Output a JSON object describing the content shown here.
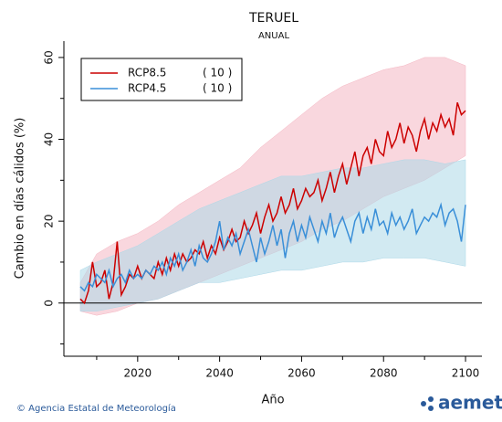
{
  "chart_data": {
    "type": "line",
    "title": "TERUEL",
    "subtitle": "ANUAL",
    "y_label": "Cambio en días cálidos (%)",
    "x_label": "Año",
    "footer": "© Agencia Estatal de Meteorología",
    "logo": "aemet",
    "xlim": [
      2002,
      2104
    ],
    "xticks": [
      2020,
      2040,
      2060,
      2080,
      2100
    ],
    "xminor": [
      2010,
      2030,
      2050,
      2070,
      2090
    ],
    "ylim": [
      -13,
      64
    ],
    "yticks": [
      0,
      20,
      40,
      60
    ],
    "yminor": [
      -10,
      10,
      30,
      50
    ],
    "zero_line": true,
    "legend": "upper-left",
    "x": [
      2006,
      2007,
      2008,
      2009,
      2010,
      2011,
      2012,
      2013,
      2014,
      2015,
      2016,
      2017,
      2018,
      2019,
      2020,
      2021,
      2022,
      2023,
      2024,
      2025,
      2026,
      2027,
      2028,
      2029,
      2030,
      2031,
      2032,
      2033,
      2034,
      2035,
      2036,
      2037,
      2038,
      2039,
      2040,
      2041,
      2042,
      2043,
      2044,
      2045,
      2046,
      2047,
      2048,
      2049,
      2050,
      2051,
      2052,
      2053,
      2054,
      2055,
      2056,
      2057,
      2058,
      2059,
      2060,
      2061,
      2062,
      2063,
      2064,
      2065,
      2066,
      2067,
      2068,
      2069,
      2070,
      2071,
      2072,
      2073,
      2074,
      2075,
      2076,
      2077,
      2078,
      2079,
      2080,
      2081,
      2082,
      2083,
      2084,
      2085,
      2086,
      2087,
      2088,
      2089,
      2090,
      2091,
      2092,
      2093,
      2094,
      2095,
      2096,
      2097,
      2098,
      2099,
      2100
    ],
    "series": [
      {
        "name": "RCP8.5",
        "note": "( 10 )",
        "color": "#cc0000",
        "band_color": "#f4b6c2",
        "values": [
          1,
          0,
          3,
          10,
          4,
          5,
          8,
          1,
          5,
          15,
          2,
          4,
          7,
          6,
          9,
          6,
          8,
          7,
          6,
          10,
          7,
          11,
          8,
          12,
          9,
          12,
          10,
          11,
          13,
          12,
          15,
          11,
          14,
          12,
          16,
          13,
          15,
          18,
          15,
          16,
          20,
          17,
          19,
          22,
          17,
          21,
          24,
          20,
          22,
          26,
          22,
          24,
          28,
          23,
          25,
          28,
          26,
          27,
          30,
          25,
          28,
          32,
          27,
          31,
          34,
          29,
          33,
          37,
          31,
          36,
          38,
          34,
          40,
          37,
          36,
          42,
          38,
          40,
          44,
          39,
          43,
          41,
          37,
          42,
          45,
          40,
          44,
          42,
          46,
          43,
          45,
          41,
          49,
          46,
          47
        ],
        "band": {
          "x": [
            2006,
            2010,
            2015,
            2020,
            2025,
            2030,
            2035,
            2040,
            2045,
            2050,
            2055,
            2060,
            2065,
            2070,
            2075,
            2080,
            2085,
            2090,
            2095,
            2100
          ],
          "low": [
            -2,
            -3,
            -2,
            0,
            1,
            3,
            5,
            7,
            9,
            11,
            13,
            15,
            18,
            20,
            23,
            26,
            28,
            30,
            33,
            36
          ],
          "high": [
            5,
            12,
            15,
            17,
            20,
            24,
            27,
            30,
            33,
            38,
            42,
            46,
            50,
            53,
            55,
            57,
            58,
            60,
            60,
            58
          ]
        }
      },
      {
        "name": "RCP4.5",
        "note": "( 10 )",
        "color": "#3a8fd8",
        "band_color": "#add8e8",
        "values": [
          4,
          3,
          5,
          4,
          7,
          6,
          5,
          8,
          4,
          6,
          7,
          5,
          8,
          6,
          7,
          6,
          8,
          7,
          9,
          8,
          10,
          7,
          11,
          9,
          12,
          8,
          10,
          13,
          9,
          14,
          11,
          10,
          12,
          15,
          20,
          13,
          16,
          14,
          17,
          12,
          15,
          18,
          14,
          10,
          16,
          12,
          15,
          19,
          14,
          18,
          11,
          17,
          20,
          15,
          19,
          16,
          21,
          18,
          15,
          20,
          17,
          22,
          16,
          19,
          21,
          18,
          15,
          20,
          22,
          17,
          21,
          18,
          23,
          19,
          20,
          17,
          22,
          19,
          21,
          18,
          20,
          23,
          17,
          19,
          21,
          20,
          22,
          21,
          24,
          19,
          22,
          23,
          20,
          15,
          24
        ],
        "band": {
          "x": [
            2006,
            2010,
            2015,
            2020,
            2025,
            2030,
            2035,
            2040,
            2045,
            2050,
            2055,
            2060,
            2065,
            2070,
            2075,
            2080,
            2085,
            2090,
            2095,
            2100
          ],
          "low": [
            -2,
            -2,
            -1,
            0,
            1,
            3,
            5,
            5,
            6,
            7,
            8,
            8,
            9,
            10,
            10,
            11,
            11,
            11,
            10,
            9
          ],
          "high": [
            8,
            10,
            12,
            14,
            17,
            20,
            23,
            25,
            27,
            29,
            31,
            31,
            32,
            33,
            33,
            34,
            35,
            35,
            34,
            35
          ]
        }
      }
    ]
  }
}
